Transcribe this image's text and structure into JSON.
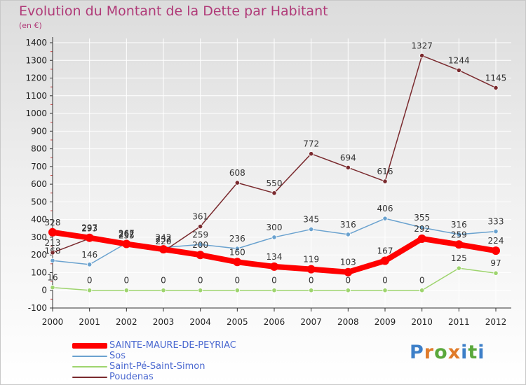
{
  "title": "Evolution du Montant de la Dette par Habitant",
  "subtitle": "(en €)",
  "logo": {
    "text": "Proxiti",
    "letters": [
      {
        "ch": "P",
        "color": "#3d7fc8"
      },
      {
        "ch": "r",
        "color": "#e07b2a"
      },
      {
        "ch": "o",
        "color": "#5aa83c"
      },
      {
        "ch": "x",
        "color": "#e07b2a"
      },
      {
        "ch": "i",
        "color": "#3d7fc8"
      },
      {
        "ch": "t",
        "color": "#5aa83c"
      },
      {
        "ch": "i",
        "color": "#3d7fc8"
      }
    ]
  },
  "chart_data": {
    "type": "line",
    "x": [
      2000,
      2001,
      2002,
      2003,
      2004,
      2005,
      2006,
      2007,
      2008,
      2009,
      2010,
      2011,
      2012
    ],
    "ylim": [
      -100,
      1400
    ],
    "yticks": [
      -100,
      0,
      100,
      200,
      300,
      400,
      500,
      600,
      700,
      800,
      900,
      1000,
      1100,
      1200,
      1300,
      1400
    ],
    "grid": true,
    "legend_position": "bottom-left",
    "series": [
      {
        "name": "SAINTE-MAURE-DE-PEYRIAC",
        "color": "#ff0000",
        "values": [
          328,
          297,
          262,
          232,
          200,
          160,
          134,
          119,
          103,
          167,
          292,
          259,
          224
        ]
      },
      {
        "name": "Sos",
        "color": "#6aa2cf",
        "values": [
          168,
          146,
          267,
          242,
          259,
          236,
          300,
          345,
          316,
          406,
          355,
          316,
          333
        ]
      },
      {
        "name": "Saint-Pé-Saint-Simon",
        "color": "#9ed46e",
        "values": [
          16,
          0,
          0,
          0,
          0,
          0,
          0,
          0,
          0,
          0,
          0,
          125,
          97
        ]
      },
      {
        "name": "Poudenas",
        "color": "#7a2a2e",
        "values": [
          213,
          293,
          255,
          220,
          361,
          608,
          550,
          772,
          694,
          616,
          1327,
          1244,
          1145
        ]
      }
    ]
  }
}
